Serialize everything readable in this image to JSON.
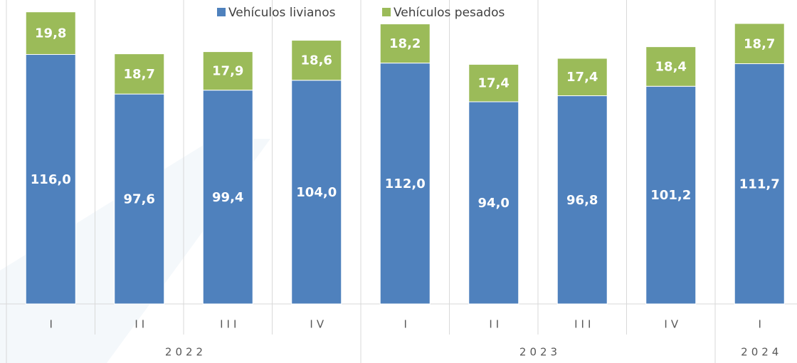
{
  "chart_data": {
    "type": "stacked_bar",
    "groups": [
      {
        "label": "2022",
        "categories": [
          "I",
          "II",
          "III",
          "IV"
        ]
      },
      {
        "label": "2023",
        "categories": [
          "I",
          "II",
          "III",
          "IV"
        ]
      },
      {
        "label": "2024",
        "categories": [
          "I"
        ]
      }
    ],
    "series": [
      {
        "name": "Vehículos livianos",
        "color": "#4f81bd",
        "values": [
          116.0,
          97.6,
          99.4,
          104.0,
          112.0,
          94.0,
          96.8,
          101.2,
          111.7
        ],
        "value_labels": [
          "116,0",
          "97,6",
          "99,4",
          "104,0",
          "112,0",
          "94,0",
          "96,8",
          "101,2",
          "111,7"
        ]
      },
      {
        "name": "Vehículos pesados",
        "color": "#9bbb59",
        "values": [
          19.8,
          18.7,
          17.9,
          18.6,
          18.2,
          17.4,
          17.4,
          18.4,
          18.7
        ],
        "value_labels": [
          "19,8",
          "18,7",
          "17,9",
          "18,6",
          "18,2",
          "17,4",
          "17,4",
          "18,4",
          "18,7"
        ]
      }
    ],
    "ylim": [
      0,
      140
    ],
    "legend": "top"
  }
}
